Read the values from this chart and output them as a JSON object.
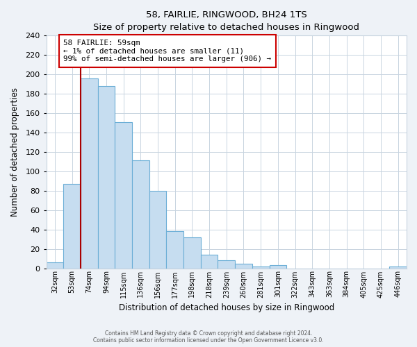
{
  "title": "58, FAIRLIE, RINGWOOD, BH24 1TS",
  "subtitle": "Size of property relative to detached houses in Ringwood",
  "xlabel": "Distribution of detached houses by size in Ringwood",
  "ylabel": "Number of detached properties",
  "bar_labels": [
    "32sqm",
    "53sqm",
    "74sqm",
    "94sqm",
    "115sqm",
    "136sqm",
    "156sqm",
    "177sqm",
    "198sqm",
    "218sqm",
    "239sqm",
    "260sqm",
    "281sqm",
    "301sqm",
    "322sqm",
    "343sqm",
    "363sqm",
    "384sqm",
    "405sqm",
    "425sqm",
    "446sqm"
  ],
  "bar_values": [
    6,
    87,
    196,
    188,
    151,
    111,
    80,
    38,
    32,
    14,
    8,
    5,
    2,
    3,
    0,
    0,
    0,
    0,
    0,
    0,
    2
  ],
  "bar_color": "#c6ddf0",
  "bar_edge_color": "#6baed6",
  "property_line_index": 2,
  "property_line_color": "#aa0000",
  "annotation_text_line1": "58 FAIRLIE: 59sqm",
  "annotation_text_line2": "← 1% of detached houses are smaller (11)",
  "annotation_text_line3": "99% of semi-detached houses are larger (906) →",
  "annotation_box_facecolor": "#ffffff",
  "annotation_box_edgecolor": "#cc0000",
  "ylim": [
    0,
    240
  ],
  "yticks": [
    0,
    20,
    40,
    60,
    80,
    100,
    120,
    140,
    160,
    180,
    200,
    220,
    240
  ],
  "footer_line1": "Contains HM Land Registry data © Crown copyright and database right 2024.",
  "footer_line2": "Contains public sector information licensed under the Open Government Licence v3.0.",
  "bg_color": "#eef2f7",
  "plot_bg_color": "#ffffff",
  "grid_color": "#c8d4e0"
}
